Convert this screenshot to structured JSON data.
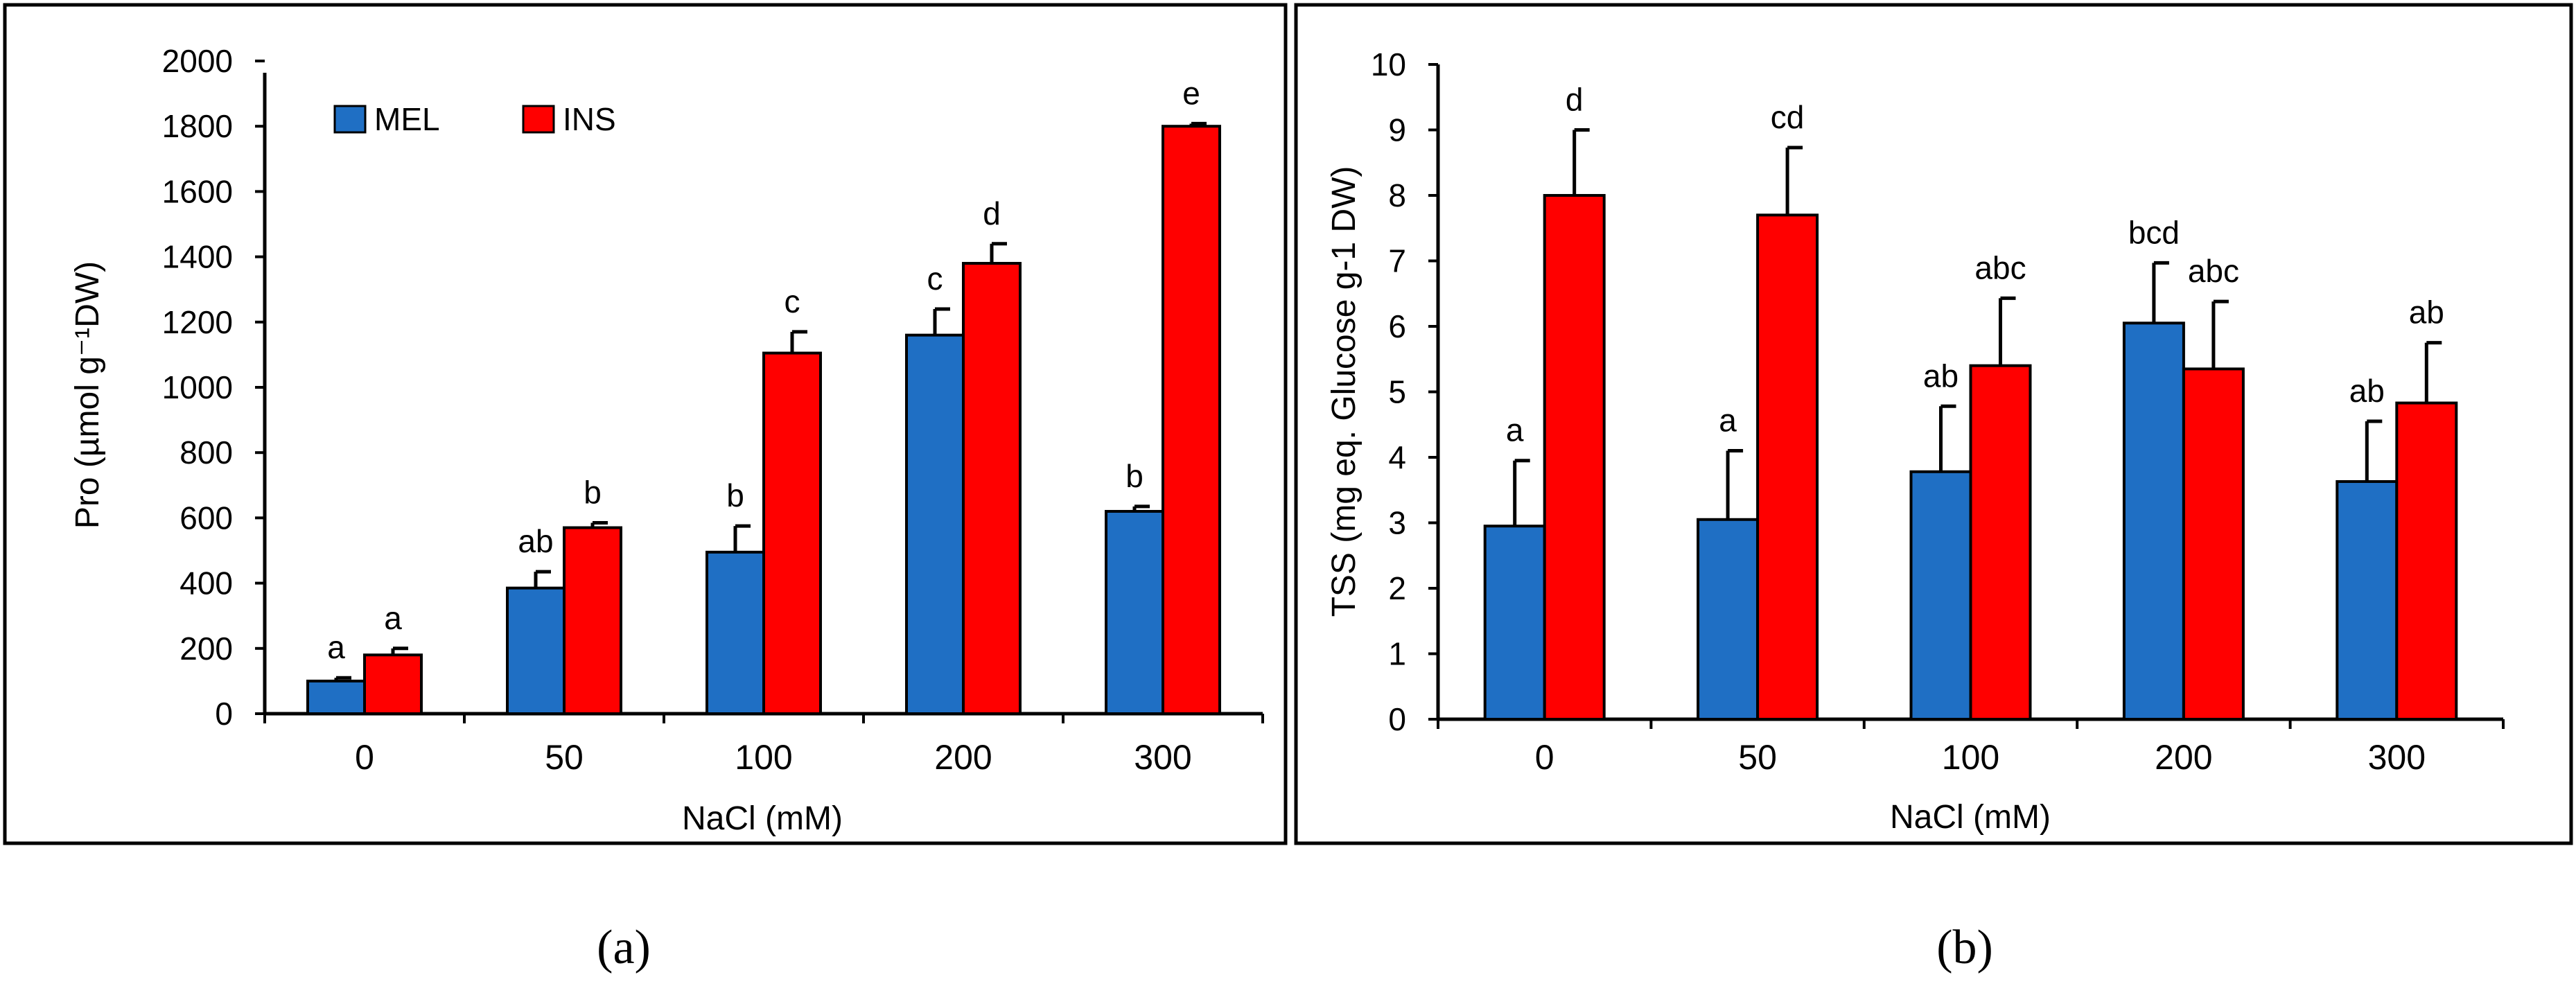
{
  "colors": {
    "MEL": "#1F6FC4",
    "INS": "#FF0000"
  },
  "chart_data": [
    {
      "type": "bar",
      "panel_label": "(a)",
      "categories": [
        "0",
        "50",
        "100",
        "200",
        "300"
      ],
      "xlabel": "NaCl (mM)",
      "ylabel": "Pro (µmol g⁻¹DW)",
      "ylim": [
        0,
        2000
      ],
      "yticks": [
        "0",
        "200",
        "400",
        "600",
        "800",
        "1000",
        "1200",
        "1400",
        "1600",
        "1800",
        "2000"
      ],
      "ytick_values": [
        0,
        200,
        400,
        600,
        800,
        1000,
        1200,
        1400,
        1600,
        1800,
        2000
      ],
      "legend": {
        "placement": "top-left",
        "entries": [
          "MEL",
          "INS"
        ]
      },
      "series": [
        {
          "name": "MEL",
          "values": [
            100,
            385,
            495,
            1160,
            620
          ],
          "errors": [
            10,
            50,
            80,
            80,
            15
          ],
          "letters": [
            "a",
            "ab",
            "b",
            "c",
            "b"
          ]
        },
        {
          "name": "INS",
          "values": [
            180,
            570,
            1105,
            1380,
            1800
          ],
          "errors": [
            20,
            15,
            65,
            60,
            8
          ],
          "letters": [
            "a",
            "b",
            "c",
            "d",
            "e"
          ]
        }
      ]
    },
    {
      "type": "bar",
      "panel_label": "(b)",
      "categories": [
        "0",
        "50",
        "100",
        "200",
        "300"
      ],
      "xlabel": "NaCl (mM)",
      "ylabel": "TSS (mg eq. Glucose g-1 DW)",
      "ylim": [
        0,
        10
      ],
      "yticks": [
        "0",
        "1",
        "2",
        "3",
        "4",
        "5",
        "6",
        "7",
        "8",
        "9",
        "10"
      ],
      "ytick_values": [
        0,
        1,
        2,
        3,
        4,
        5,
        6,
        7,
        8,
        9,
        10
      ],
      "legend": null,
      "series": [
        {
          "name": "MEL",
          "values": [
            2.95,
            3.05,
            3.78,
            6.05,
            3.63
          ],
          "errors": [
            1.0,
            1.05,
            1.0,
            0.92,
            0.92
          ],
          "letters": [
            "a",
            "a",
            "ab",
            "bcd",
            "ab"
          ]
        },
        {
          "name": "INS",
          "values": [
            8.0,
            7.7,
            5.4,
            5.35,
            4.83
          ],
          "errors": [
            1.0,
            1.03,
            1.03,
            1.03,
            0.92
          ],
          "letters": [
            "d",
            "cd",
            "abc",
            "abc",
            "ab"
          ]
        }
      ]
    }
  ]
}
